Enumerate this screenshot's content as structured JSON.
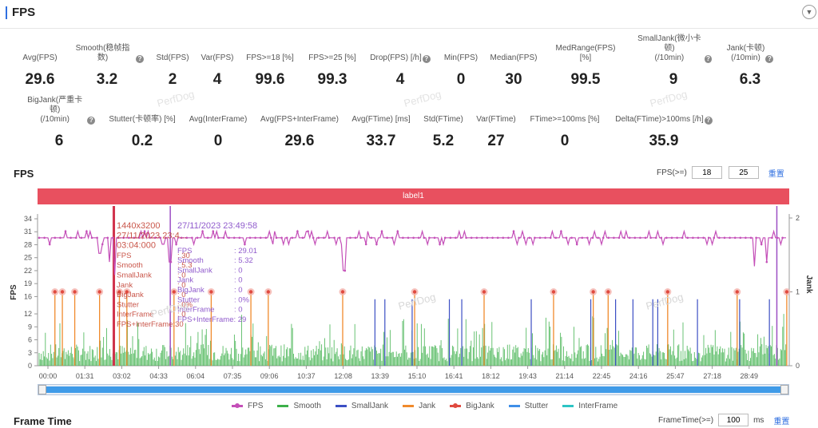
{
  "header": {
    "title": "FPS",
    "toggle_icon": "chevron-down-icon"
  },
  "metrics": [
    {
      "label": "Avg(FPS)",
      "value": "29.6",
      "help": false
    },
    {
      "label": "Smooth(稳帧指数)",
      "value": "3.2",
      "help": true
    },
    {
      "label": "Std(FPS)",
      "value": "2",
      "help": false
    },
    {
      "label": "Var(FPS)",
      "value": "4",
      "help": false
    },
    {
      "label": "FPS>=18 [%]",
      "value": "99.6",
      "help": false
    },
    {
      "label": "FPS>=25 [%]",
      "value": "99.3",
      "help": false
    },
    {
      "label": "Drop(FPS) [/h]",
      "value": "4",
      "help": true
    },
    {
      "label": "Min(FPS)",
      "value": "0",
      "help": false
    },
    {
      "label": "Median(FPS)",
      "value": "30",
      "help": false
    },
    {
      "label": "MedRange(FPS)[%]",
      "value": "99.5",
      "help": false
    },
    {
      "label": "SmallJank(微小卡顿)\n(/10min)",
      "value": "9",
      "help": true
    },
    {
      "label": "Jank(卡顿)\n(/10min)",
      "value": "6.3",
      "help": true
    },
    {
      "label": "BigJank(严重卡顿)\n(/10min)",
      "value": "6",
      "help": true
    },
    {
      "label": "Stutter(卡顿率) [%]",
      "value": "0.2",
      "help": false
    },
    {
      "label": "Avg(InterFrame)",
      "value": "0",
      "help": false
    },
    {
      "label": "Avg(FPS+InterFrame)",
      "value": "29.6",
      "help": false
    },
    {
      "label": "Avg(FTime) [ms]",
      "value": "33.7",
      "help": false
    },
    {
      "label": "Std(FTime)",
      "value": "5.2",
      "help": false
    },
    {
      "label": "Var(FTime)",
      "value": "27",
      "help": false
    },
    {
      "label": "FTime>=100ms [%]",
      "value": "0",
      "help": false
    },
    {
      "label": "Delta(FTime)>100ms [/h]",
      "value": "35.9",
      "help": true
    }
  ],
  "watermark": "PerfDog",
  "fps_section": {
    "title": "FPS",
    "filter_label": "FPS(>=)",
    "filter_value_1": "18",
    "filter_value_2": "25",
    "reset_label": "重置",
    "band_label": "label1",
    "y_axis_label": "FPS",
    "y2_axis_label": "Jank"
  },
  "tooltip": {
    "left_lines": [
      "1440x3200",
      "27/11/2023 23:4...",
      "03:04:000",
      "FPS",
      "Smooth",
      "SmallJank",
      "Jank",
      "BigJank",
      "Stutter",
      "InterFrame",
      "FPS+InterFrame:30"
    ],
    "left_values": [
      "",
      "",
      "",
      ": 30",
      ": 5.3",
      ": 0",
      ": 0",
      ": 0",
      ": 0%",
      ": 0",
      ""
    ],
    "right_lines": [
      "27/11/2023 23:49:58",
      "FPS",
      "Smooth",
      "SmallJank",
      "Jank",
      "BigJank",
      "Stutter",
      "InterFrame",
      "FPS+InterFrame: 29"
    ],
    "right_values": [
      "",
      ": 29.01",
      ": 5.32",
      ": 0",
      ": 0",
      ": 0",
      ": 0%",
      ": 0",
      ""
    ]
  },
  "chart_data": {
    "type": "line",
    "x_ticks": [
      "00:00",
      "01:31",
      "03:02",
      "04:33",
      "06:04",
      "07:35",
      "09:06",
      "10:37",
      "12:08",
      "13:39",
      "15:10",
      "16:41",
      "18:12",
      "19:43",
      "21:14",
      "22:45",
      "24:16",
      "25:47",
      "27:18",
      "28:49"
    ],
    "y_ticks": [
      0,
      3,
      6,
      9,
      12,
      16,
      19,
      22,
      25,
      28,
      31,
      34
    ],
    "y2_ticks": [
      0,
      1,
      2
    ],
    "ylim": [
      0,
      34
    ],
    "y2lim": [
      0,
      2
    ],
    "fps_level": 29.6,
    "fps_dips": [
      {
        "t": 2.5,
        "v": 26
      },
      {
        "t": 2.9,
        "v": 24
      },
      {
        "t": 3.1,
        "v": 21
      },
      {
        "t": 5.35,
        "v": 24
      },
      {
        "t": 12.35,
        "v": 22
      },
      {
        "t": 28.9,
        "v": 23
      },
      {
        "t": 29.4,
        "v": 24
      }
    ],
    "jank_markers": [
      0.7,
      1.0,
      1.5,
      2.5,
      3.3,
      3.6,
      5.5,
      7.0,
      8.6,
      9.3,
      12.3,
      15.2,
      18.0,
      20.8,
      22.4,
      23.0,
      25.4,
      28.2,
      30.2
    ],
    "jank_value": 1,
    "stutter_spikes": [
      3.05,
      3.1,
      5.35,
      29.8
    ],
    "smalljank_lines": [
      13.6,
      14.0,
      15.1,
      16.6,
      17.1,
      19.9,
      22.3,
      23.3,
      24.0,
      24.8,
      25.0,
      26.6,
      28.3,
      29.5
    ],
    "legend": [
      {
        "name": "FPS",
        "color": "#c44fb8",
        "dot": true
      },
      {
        "name": "Smooth",
        "color": "#3cb04a",
        "dot": false
      },
      {
        "name": "SmallJank",
        "color": "#3c4fc4",
        "dot": false
      },
      {
        "name": "Jank",
        "color": "#f08a2c",
        "dot": false
      },
      {
        "name": "BigJank",
        "color": "#e04a3f",
        "dot": true
      },
      {
        "name": "Stutter",
        "color": "#3f8fe8",
        "dot": false
      },
      {
        "name": "InterFrame",
        "color": "#2dc4c4",
        "dot": false
      }
    ]
  },
  "frame_time": {
    "title": "Frame Time",
    "filter_label": "FrameTime(>=)",
    "filter_value": "100",
    "unit": "ms",
    "reset_label": "重置"
  }
}
